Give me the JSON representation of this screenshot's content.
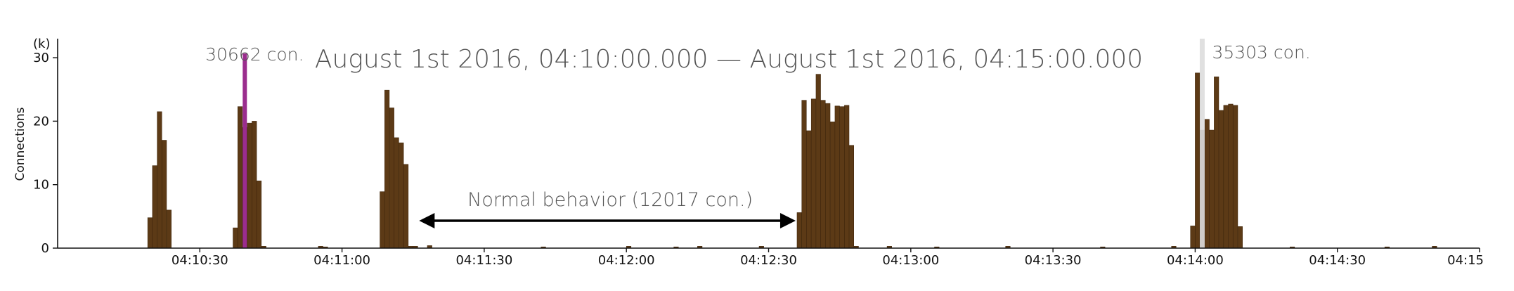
{
  "chart_data": {
    "type": "bar",
    "title": "August 1st 2016, 04:10:00.000 — August 1st 2016, 04:15:00.000",
    "ylabel": "Connections",
    "yunit": "(k)",
    "ylim": [
      0,
      33
    ],
    "yticks": [
      0,
      10,
      20,
      30
    ],
    "xlim": [
      "04:10:00",
      "04:15:00"
    ],
    "xticks": [
      "04:10:30",
      "04:11:00",
      "04:11:30",
      "04:12:00",
      "04:12:30",
      "04:13:00",
      "04:13:30",
      "04:14:00",
      "04:14:30",
      "04:15"
    ],
    "bar_color": "#5c3a16",
    "series": [
      {
        "x": [
          "04:10:19",
          "04:10:20",
          "04:10:21",
          "04:10:22",
          "04:10:23",
          "04:10:37",
          "04:10:38",
          "04:10:39",
          "04:10:40",
          "04:10:41",
          "04:10:42",
          "04:10:43",
          "04:10:55",
          "04:10:56",
          "04:11:08",
          "04:11:09",
          "04:11:10",
          "04:11:11",
          "04:11:12",
          "04:11:13",
          "04:11:14",
          "04:11:15",
          "04:11:18",
          "04:11:42",
          "04:12:00",
          "04:12:10",
          "04:12:15",
          "04:12:28",
          "04:12:36",
          "04:12:37",
          "04:12:38",
          "04:12:39",
          "04:12:40",
          "04:12:41",
          "04:12:42",
          "04:12:43",
          "04:12:44",
          "04:12:45",
          "04:12:46",
          "04:12:47",
          "04:12:48",
          "04:12:55",
          "04:13:05",
          "04:13:20",
          "04:13:40",
          "04:13:55",
          "04:13:59",
          "04:14:00",
          "04:14:01",
          "04:14:02",
          "04:14:03",
          "04:14:04",
          "04:14:05",
          "04:14:06",
          "04:14:07",
          "04:14:08",
          "04:14:09",
          "04:14:20",
          "04:14:40",
          "04:14:50"
        ],
        "values": [
          4.8,
          13,
          21.5,
          17,
          6,
          3.2,
          22.3,
          19,
          19.7,
          20,
          10.6,
          0.3,
          0.3,
          0.2,
          8.9,
          24.9,
          22.1,
          17.4,
          16.6,
          13.2,
          0.3,
          0.3,
          0.4,
          0.2,
          0.3,
          0.2,
          0.3,
          0.3,
          5.6,
          23.3,
          18.5,
          23.5,
          27.4,
          23.3,
          22.8,
          19.9,
          22.4,
          22.3,
          22.5,
          16.2,
          0.3,
          0.3,
          0.2,
          0.3,
          0.2,
          0.3,
          3.5,
          27.6,
          18.6,
          20.3,
          18.6,
          27,
          21.7,
          22.5,
          22.7,
          22.5,
          3.4,
          0.2,
          0.2,
          0.3
        ]
      }
    ],
    "annotations": {
      "spike_left": {
        "label": "30662 con.",
        "at": "04:10:39",
        "value": 30.662,
        "color": "#9b2d8e"
      },
      "spike_right": {
        "label": "35303 con.",
        "at": "04:14:01",
        "value": 35.303,
        "color": "#dddddd"
      },
      "span": {
        "label": "Normal behavior (12017 con.)",
        "from": "04:11:15",
        "to": "04:12:36",
        "color": "#000000"
      }
    }
  }
}
